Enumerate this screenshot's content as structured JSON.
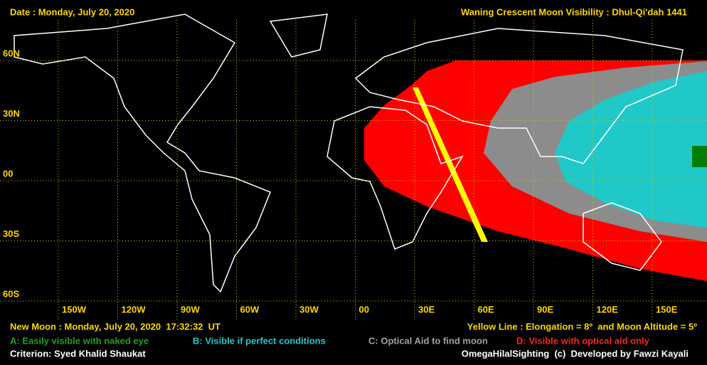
{
  "header": {
    "date": "Date : Monday, July 20, 2020",
    "title": "Waning Crescent Moon Visibility : Dhul-Qi'dah 1441"
  },
  "lat_labels": [
    "60N",
    "30N",
    "00",
    "30S",
    "60S"
  ],
  "lon_labels": [
    "150W",
    "120W",
    "90W",
    "60W",
    "30W",
    "00",
    "30E",
    "60E",
    "90E",
    "120E",
    "150E"
  ],
  "footer": {
    "new_moon": "New Moon : Monday, July 20, 2020  17:32:32  UT",
    "yellow_line": "Yellow Line : Elongation = 8º  and Moon Altitude = 5º",
    "legend": [
      "A: Easily visible with naked eye",
      "B: Visible if perfect conditions",
      "C: Optical Aid to find moon",
      "D: Visible with optical aid only"
    ],
    "criterion": "Criterion: Syed Khalid Shaukat",
    "credit": "OmegaHilalSighting  (c)  Developed by Fawzi Kayali"
  }
}
